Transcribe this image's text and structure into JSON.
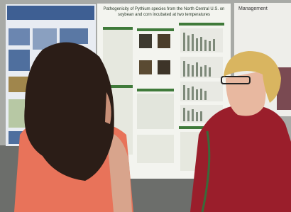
{
  "poster": {
    "title_lines": [
      "Pathogenicity of Pythium species from the North Central U.S. on",
      "soybean and corn incubated at two temperatures"
    ],
    "right_heading": "Management"
  }
}
